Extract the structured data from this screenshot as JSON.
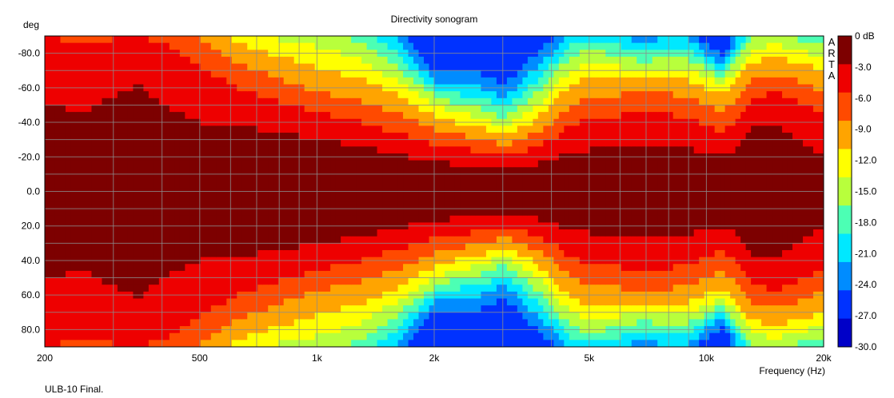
{
  "chart_data": {
    "type": "heatmap",
    "title": "Directivity sonogram",
    "xlabel": "Frequency (Hz)",
    "ylabel": "deg",
    "x_scale": "log",
    "xlim": [
      200,
      20000
    ],
    "ylim": [
      90,
      -90
    ],
    "grid": true,
    "x_ticks": [
      200,
      500,
      1000,
      2000,
      5000,
      10000,
      20000
    ],
    "x_tick_labels": [
      "200",
      "500",
      "1k",
      "2k",
      "5k",
      "10k",
      "20k"
    ],
    "y_ticks": [
      -80,
      -60,
      -40,
      -20,
      0,
      20,
      40,
      60,
      80
    ],
    "y_tick_labels": [
      "-80.0",
      "-60.0",
      "-40.0",
      "-20.0",
      "0.0",
      "20.0",
      "40.0",
      "60.0",
      "80.0"
    ],
    "colorbar": {
      "labels": [
        "0 dB",
        "-3.0",
        "-6.0",
        "-9.0",
        "-12.0",
        "-15.0",
        "-18.0",
        "-21.0",
        "-24.0",
        "-27.0",
        "-30.0"
      ],
      "levels": [
        0,
        -3,
        -6,
        -9,
        -12,
        -15,
        -18,
        -21,
        -24,
        -27,
        -30
      ],
      "colors": [
        "#7d0000",
        "#ee0000",
        "#ff4a00",
        "#ffa400",
        "#ffff00",
        "#b8ff3c",
        "#4cffb4",
        "#00e8ff",
        "#008cff",
        "#0032ff",
        "#0000c8"
      ]
    },
    "beamwidth_contours_deg": {
      "frequencies_hz": [
        200,
        250,
        300,
        350,
        400,
        500,
        600,
        700,
        800,
        1000,
        1300,
        1600,
        1800,
        2000,
        2200,
        2500,
        2800,
        3000,
        3300,
        3600,
        4000,
        4500,
        5000,
        6000,
        7000,
        8000,
        9000,
        10000,
        11000,
        12000,
        13000,
        15000,
        17000,
        20000
      ],
      "minus3dB": [
        50,
        46,
        55,
        62,
        50,
        40,
        38,
        36,
        34,
        30,
        26,
        22,
        19,
        17,
        16,
        15,
        13,
        12,
        13,
        15,
        18,
        22,
        24,
        25,
        26,
        27,
        25,
        22,
        20,
        24,
        36,
        38,
        30,
        20
      ],
      "minus6dB": [
        90,
        85,
        88,
        90,
        86,
        72,
        62,
        56,
        52,
        46,
        40,
        34,
        30,
        27,
        26,
        24,
        22,
        20,
        22,
        25,
        30,
        38,
        42,
        44,
        44,
        45,
        42,
        38,
        34,
        40,
        52,
        58,
        52,
        46
      ],
      "minus9dB": [
        95,
        95,
        95,
        95,
        95,
        88,
        76,
        70,
        65,
        58,
        52,
        46,
        40,
        36,
        34,
        31,
        29,
        27,
        29,
        33,
        40,
        50,
        55,
        56,
        56,
        57,
        54,
        50,
        46,
        54,
        64,
        68,
        64,
        58
      ],
      "minus12dB": [
        95,
        95,
        95,
        95,
        95,
        95,
        88,
        82,
        78,
        72,
        65,
        56,
        48,
        44,
        41,
        38,
        35,
        33,
        36,
        41,
        50,
        62,
        66,
        66,
        64,
        66,
        64,
        60,
        56,
        64,
        74,
        78,
        75,
        70
      ],
      "minus15dB": [
        95,
        95,
        95,
        95,
        95,
        95,
        95,
        92,
        88,
        84,
        76,
        64,
        56,
        50,
        47,
        44,
        40,
        38,
        42,
        48,
        58,
        70,
        74,
        72,
        70,
        72,
        70,
        66,
        62,
        70,
        82,
        85,
        82,
        78
      ],
      "minus18dB": [
        95,
        95,
        95,
        95,
        95,
        95,
        95,
        95,
        95,
        93,
        86,
        72,
        62,
        55,
        52,
        50,
        46,
        43,
        48,
        55,
        66,
        78,
        82,
        78,
        75,
        78,
        76,
        72,
        66,
        76,
        88,
        90,
        88,
        85
      ],
      "minus21dB": [
        95,
        95,
        95,
        95,
        95,
        95,
        95,
        95,
        95,
        95,
        95,
        80,
        68,
        60,
        57,
        55,
        52,
        48,
        55,
        62,
        73,
        85,
        88,
        84,
        80,
        84,
        82,
        76,
        70,
        82,
        93,
        95,
        93,
        90
      ],
      "minus24dB": [
        95,
        95,
        95,
        95,
        95,
        95,
        95,
        95,
        95,
        95,
        95,
        88,
        74,
        64,
        62,
        62,
        58,
        54,
        62,
        70,
        80,
        92,
        95,
        90,
        86,
        90,
        88,
        80,
        74,
        88,
        95,
        95,
        95,
        95
      ],
      "minus27dB": [
        95,
        95,
        95,
        95,
        95,
        95,
        95,
        95,
        95,
        95,
        95,
        95,
        80,
        68,
        68,
        70,
        66,
        62,
        70,
        78,
        88,
        95,
        95,
        95,
        92,
        95,
        95,
        85,
        78,
        93,
        95,
        95,
        95,
        95
      ]
    }
  },
  "footer": {
    "note": "ULB-10 Final."
  },
  "brand": {
    "letters": [
      "A",
      "R",
      "T",
      "A"
    ]
  }
}
